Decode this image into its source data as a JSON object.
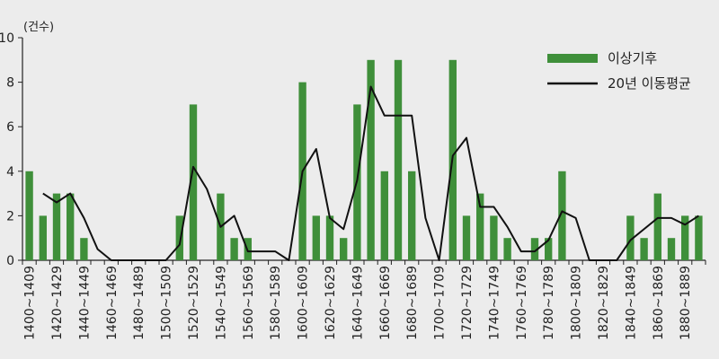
{
  "chart_data": {
    "type": "bar+line",
    "unit_label": "(건수)",
    "ylim": [
      0,
      10
    ],
    "yticks": [
      0,
      2,
      4,
      6,
      8,
      10
    ],
    "grid": false,
    "legend_position": "top-right",
    "bar_color": "#3f8f3a",
    "line_color": "#111111",
    "categories": [
      "1400~1409",
      "1410~1419",
      "1420~1429",
      "1430~1439",
      "1440~1449",
      "1450~1459",
      "1460~1469",
      "1470~1479",
      "1480~1489",
      "1490~1499",
      "1500~1509",
      "1510~1519",
      "1520~1529",
      "1530~1539",
      "1540~1549",
      "1550~1559",
      "1560~1569",
      "1570~1579",
      "1580~1589",
      "1590~1599",
      "1600~1609",
      "1610~1619",
      "1620~1629",
      "1630~1639",
      "1640~1649",
      "1650~1659",
      "1660~1669",
      "1670~1679",
      "1680~1689",
      "1690~1699",
      "1700~1709",
      "1710~1719",
      "1720~1729",
      "1730~1739",
      "1740~1749",
      "1750~1759",
      "1760~1769",
      "1770~1779",
      "1780~1789",
      "1790~1799",
      "1800~1809",
      "1810~1819",
      "1820~1829",
      "1830~1839",
      "1840~1849",
      "1850~1859",
      "1860~1869",
      "1870~1879",
      "1880~1889",
      "1890~1899"
    ],
    "series": [
      {
        "name": "이상기후",
        "type": "bar",
        "values": [
          4,
          2,
          3,
          3,
          1,
          0,
          0,
          0,
          0,
          0,
          0,
          2,
          7,
          0,
          3,
          1,
          1,
          0,
          0,
          0,
          8,
          2,
          2,
          1,
          7,
          9,
          4,
          9,
          4,
          0,
          0,
          9,
          2,
          3,
          2,
          1,
          0,
          1,
          1,
          4,
          0,
          0,
          0,
          0,
          2,
          1,
          3,
          1,
          2,
          2
        ]
      },
      {
        "name": "20년 이동평균",
        "type": "line",
        "values": [
          null,
          3,
          2.6,
          3,
          1.9,
          0.5,
          0,
          0,
          0,
          0,
          0,
          0.7,
          4.2,
          3.2,
          1.5,
          2,
          0.4,
          0.4,
          0.4,
          0,
          4,
          5,
          1.9,
          1.4,
          3.6,
          7.8,
          6.5,
          6.5,
          6.5,
          1.9,
          0,
          4.7,
          5.5,
          2.4,
          2.4,
          1.5,
          0.4,
          0.4,
          0.9,
          2.2,
          1.9,
          0,
          0,
          0,
          0.9,
          1.4,
          1.9,
          1.9,
          1.6,
          2
        ]
      }
    ]
  }
}
